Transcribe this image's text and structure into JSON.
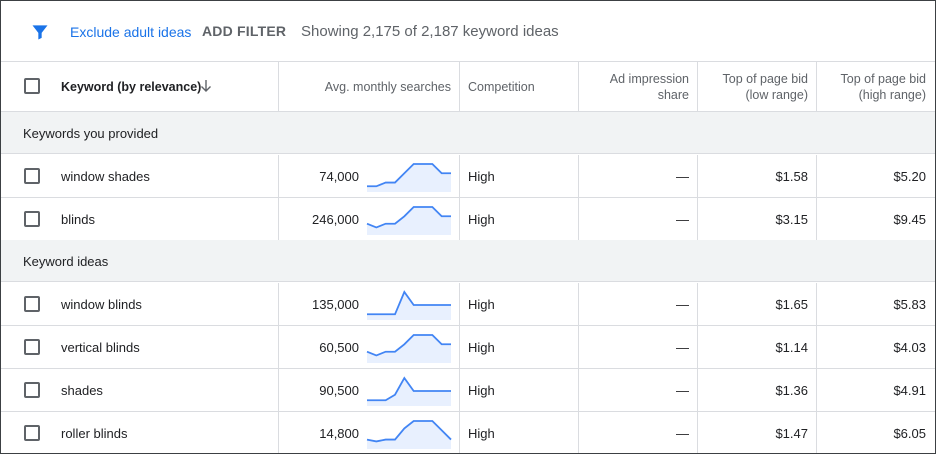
{
  "toolbar": {
    "filter_icon": "filter-icon",
    "exclude_label": "Exclude adult ideas",
    "add_filter_label": "ADD FILTER",
    "showing_text": "Showing 2,175 of 2,187 keyword ideas"
  },
  "columns": {
    "keyword": "Keyword (by relevance)",
    "searches": "Avg. monthly searches",
    "competition": "Competition",
    "impression_line1": "Ad impression",
    "impression_line2": "share",
    "bid_low_line1": "Top of page bid",
    "bid_low_line2": "(low range)",
    "bid_high_line1": "Top of page bid",
    "bid_high_line2": "(high range)"
  },
  "sections": {
    "provided": "Keywords you provided",
    "ideas": "Keyword ideas"
  },
  "rows_provided": [
    {
      "keyword": "window shades",
      "searches": "74,000",
      "competition": "High",
      "impression": "—",
      "bid_low": "$1.58",
      "bid_high": "$5.20",
      "trend": [
        2,
        2,
        4,
        4,
        9,
        14,
        14,
        14,
        9,
        9
      ]
    },
    {
      "keyword": "blinds",
      "searches": "246,000",
      "competition": "High",
      "impression": "—",
      "bid_low": "$3.15",
      "bid_high": "$9.45",
      "trend": [
        5,
        3,
        5,
        5,
        9,
        14,
        14,
        14,
        9,
        9
      ]
    }
  ],
  "rows_ideas": [
    {
      "keyword": "window blinds",
      "searches": "135,000",
      "competition": "High",
      "impression": "—",
      "bid_low": "$1.65",
      "bid_high": "$5.83",
      "trend": [
        2,
        2,
        2,
        2,
        14,
        7,
        7,
        7,
        7,
        7
      ]
    },
    {
      "keyword": "vertical blinds",
      "searches": "60,500",
      "competition": "High",
      "impression": "—",
      "bid_low": "$1.14",
      "bid_high": "$4.03",
      "trend": [
        5,
        3,
        5,
        5,
        9,
        14,
        14,
        14,
        9,
        9
      ]
    },
    {
      "keyword": "shades",
      "searches": "90,500",
      "competition": "High",
      "impression": "—",
      "bid_low": "$1.36",
      "bid_high": "$4.91",
      "trend": [
        2,
        2,
        2,
        5,
        14,
        7,
        7,
        7,
        7,
        7
      ]
    },
    {
      "keyword": "roller blinds",
      "searches": "14,800",
      "competition": "High",
      "impression": "—",
      "bid_low": "$1.47",
      "bid_high": "$6.05",
      "trend": [
        4,
        3,
        4,
        4,
        10,
        14,
        14,
        14,
        9,
        4
      ]
    }
  ],
  "colors": {
    "accent": "#1a73e8",
    "sparkline": "#4285f4",
    "sparkline_fill": "#e8f0fe",
    "section_bg": "#f1f3f4"
  }
}
